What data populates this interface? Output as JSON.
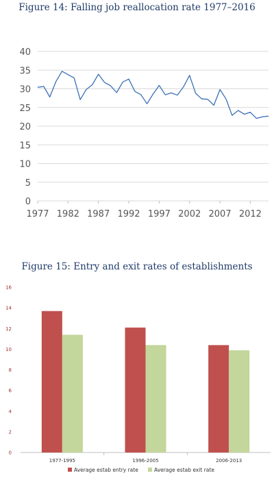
{
  "chart_data": [
    {
      "type": "line",
      "title": "Figure 14: Falling job reallocation rate 1977–2016",
      "xlabel": "",
      "ylabel": "",
      "ylim": [
        0,
        40
      ],
      "yticks": [
        0,
        5,
        10,
        15,
        20,
        25,
        30,
        35,
        40
      ],
      "xticks": [
        1977,
        1982,
        1987,
        1992,
        1997,
        2002,
        2007,
        2012
      ],
      "xlim": [
        1977,
        2015
      ],
      "grid": true,
      "colors": {
        "line": "#3a6fb4",
        "grid": "#d9d9d9"
      },
      "x": [
        1977,
        1978,
        1979,
        1980,
        1981,
        1982,
        1983,
        1984,
        1985,
        1986,
        1987,
        1988,
        1989,
        1990,
        1991,
        1992,
        1993,
        1994,
        1995,
        1996,
        1997,
        1998,
        1999,
        2000,
        2001,
        2002,
        2003,
        2004,
        2005,
        2006,
        2007,
        2008,
        2009,
        2010,
        2011,
        2012,
        2013,
        2014,
        2015
      ],
      "series": [
        {
          "values": [
            30.4,
            30.6,
            27.8,
            31.9,
            34.7,
            33.8,
            32.9,
            27.1,
            29.8,
            31.1,
            33.9,
            31.7,
            30.8,
            29.0,
            31.8,
            32.6,
            29.3,
            28.4,
            26.0,
            28.6,
            30.9,
            28.4,
            28.9,
            28.3,
            30.5,
            33.6,
            28.8,
            27.3,
            27.2,
            25.6,
            29.8,
            27.3,
            22.9,
            24.2,
            23.2,
            23.7,
            22.1,
            22.5,
            22.7
          ]
        }
      ]
    },
    {
      "type": "bar",
      "title": "Figure 15: Entry and exit rates of establishments",
      "xlabel": "",
      "ylabel": "",
      "ylim": [
        0,
        16
      ],
      "yticks": [
        0,
        2,
        4,
        6,
        8,
        10,
        12,
        14,
        16
      ],
      "categories": [
        "1977-1995",
        "1996-2005",
        "2006-2013"
      ],
      "legend_position": "bottom",
      "grid": false,
      "series": [
        {
          "name": "Average estab entry rate",
          "color": "#c0504d",
          "values": [
            13.7,
            12.1,
            10.4
          ]
        },
        {
          "name": "Average estab exit rate",
          "color": "#c3d69b",
          "values": [
            11.4,
            10.4,
            9.9
          ]
        }
      ]
    }
  ]
}
